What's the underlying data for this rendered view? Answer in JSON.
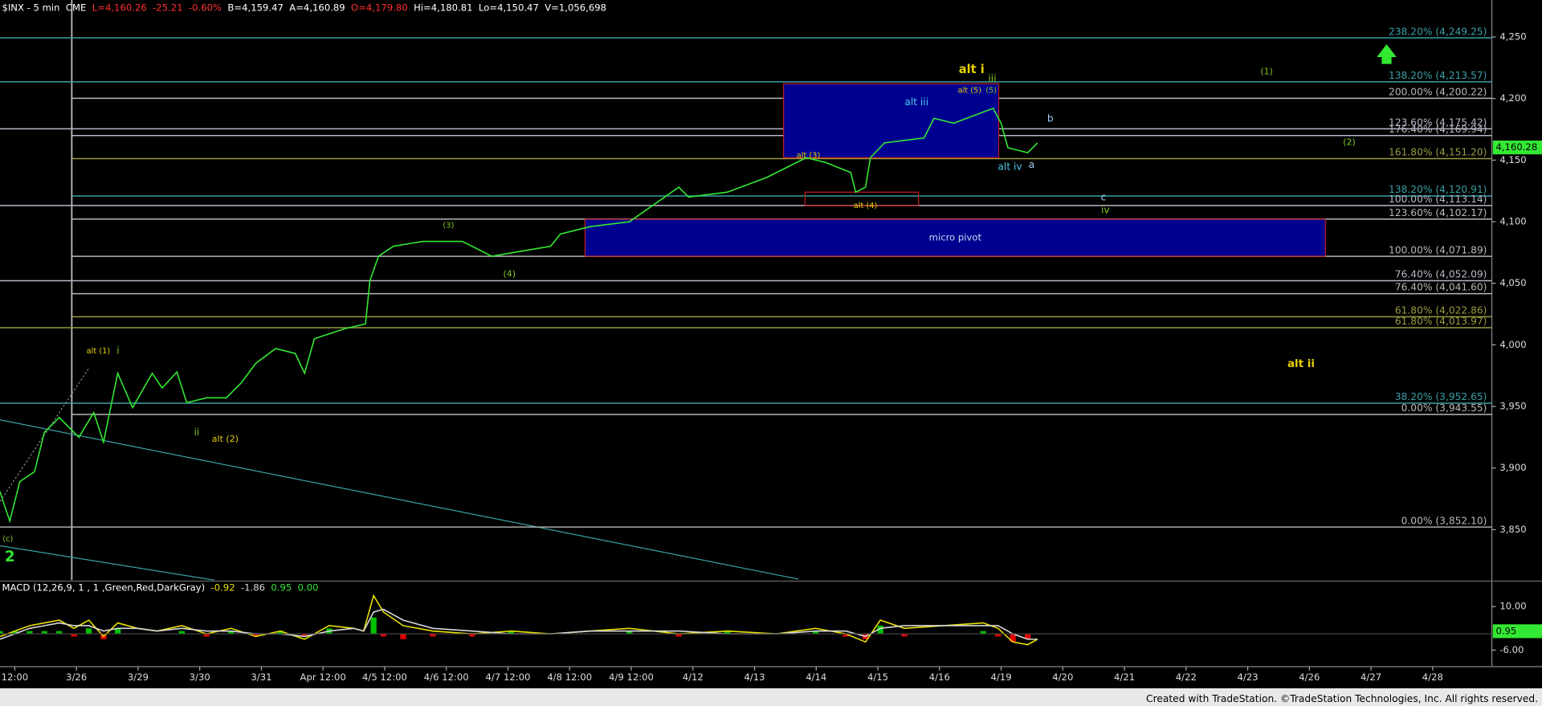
{
  "chart_data": [
    {
      "type": "line",
      "title": "$INX - 5 min",
      "exchange": "CME",
      "stats": [
        "L=4,160.26",
        "-25.21",
        "-0.60%",
        "B=4,159.47",
        "A=4,160.89",
        "O=4,179.80",
        "Hi=4,180.81",
        "Lo=4,150.47",
        "V=1,056,698"
      ],
      "xlim": [
        -0.24,
        23.96
      ],
      "xticks": [
        {
          "value": 0,
          "label": "12:00"
        },
        {
          "value": 1,
          "label": "3/26"
        },
        {
          "value": 2,
          "label": "3/29"
        },
        {
          "value": 3,
          "label": "3/30"
        },
        {
          "value": 4,
          "label": "3/31"
        },
        {
          "value": 5,
          "label": "Apr 12:00"
        },
        {
          "value": 6,
          "label": "4/5 12:00"
        },
        {
          "value": 7,
          "label": "4/6 12:00"
        },
        {
          "value": 8,
          "label": "4/7 12:00"
        },
        {
          "value": 9,
          "label": "4/8 12:00"
        },
        {
          "value": 10,
          "label": "4/9 12:00"
        },
        {
          "value": 11,
          "label": "4/12"
        },
        {
          "value": 12,
          "label": "4/13"
        },
        {
          "value": 13,
          "label": "4/14"
        },
        {
          "value": 14,
          "label": "4/15"
        },
        {
          "value": 15,
          "label": "4/16"
        },
        {
          "value": 16,
          "label": "4/19"
        },
        {
          "value": 17,
          "label": "4/20"
        },
        {
          "value": 18,
          "label": "4/21"
        },
        {
          "value": 19,
          "label": "4/22"
        },
        {
          "value": 20,
          "label": "4/23"
        },
        {
          "value": 21,
          "label": "4/26"
        },
        {
          "value": 22,
          "label": "4/27"
        },
        {
          "value": 23,
          "label": "4/28"
        }
      ],
      "ylim": [
        3809,
        4280
      ],
      "yticks": [
        {
          "value": 3850,
          "label": "3,850"
        },
        {
          "value": 3900,
          "label": "3,900"
        },
        {
          "value": 3950,
          "label": "3,950"
        },
        {
          "value": 4000,
          "label": "4,000"
        },
        {
          "value": 4050,
          "label": "4,050"
        },
        {
          "value": 4100,
          "label": "4,100"
        },
        {
          "value": 4150,
          "label": "4,150"
        },
        {
          "value": 4200,
          "label": "4,200"
        },
        {
          "value": 4250,
          "label": "4,250"
        }
      ],
      "grid": false,
      "x": [
        -0.24,
        -0.19,
        -0.08,
        0.08,
        0.32,
        0.48,
        0.72,
        1.04,
        1.28,
        1.44,
        1.67,
        1.91,
        2.23,
        2.39,
        2.63,
        2.79,
        3.11,
        3.43,
        3.67,
        3.91,
        4.23,
        4.55,
        4.7,
        4.86,
        5.34,
        5.69,
        5.76,
        5.9,
        6.14,
        6.62,
        7.26,
        7.74,
        8.21,
        8.69,
        8.85,
        9.33,
        9.97,
        10.77,
        10.93,
        11.56,
        12.2,
        12.84,
        13.16,
        13.56,
        13.64,
        13.8,
        13.88,
        14.11,
        14.75,
        14.91,
        15.23,
        15.87,
        16.0,
        16.11,
        16.43,
        16.59
      ],
      "series": [
        {
          "color": "#33e833",
          "values": [
            3881,
            3873,
            3857,
            3889,
            3897,
            3929,
            3941,
            3925,
            3945,
            3921,
            3977,
            3949,
            3977,
            3965,
            3978,
            3953,
            3957,
            3957,
            3969,
            3985,
            3997,
            3993,
            3977,
            4005,
            4013,
            4017,
            4052,
            4072,
            4080,
            4084,
            4084,
            4072,
            4076,
            4080,
            4090,
            4096,
            4100,
            4128,
            4120,
            4124,
            4136,
            4152,
            4148,
            4140,
            4124,
            4128,
            4152,
            4164,
            4168,
            4184,
            4180,
            4192,
            4180,
            4160,
            4156,
            4164
          ]
        }
      ],
      "last_value": {
        "value": 4160.28,
        "label": "4,160.28",
        "color": "#33e833"
      },
      "levels": [
        {
          "value": 4249.25,
          "label": "238.20% (4,249.25)",
          "color": "#3a9fa6"
        },
        {
          "value": 4213.57,
          "label": "138.20% (4,213.57)",
          "color": "#3a9fa6"
        },
        {
          "value": 4200.22,
          "label": "200.00% (4,200.22)",
          "color": "#b8b8b8"
        },
        {
          "value": 4175.42,
          "label": "123.60% (4,175.42)",
          "color": "#b8b8c8"
        },
        {
          "value": 4169.94,
          "label": "176.40% (4,169.94)",
          "color": "#b8b8c8"
        },
        {
          "value": 4151.2,
          "label": "161.80% (4,151.20)",
          "color": "#9a9a40"
        },
        {
          "value": 4120.91,
          "label": "138.20% (4,120.91)",
          "color": "#3a9fa6"
        },
        {
          "value": 4113.14,
          "label": "100.00% (4,113.14)",
          "color": "#b8b8c8"
        },
        {
          "value": 4102.17,
          "label": "123.60% (4,102.17)",
          "color": "#b8b8b8"
        },
        {
          "value": 4071.89,
          "label": "100.00% (4,071.89)",
          "color": "#b8b8b8"
        },
        {
          "value": 4052.09,
          "label": "76.40% (4,052.09)",
          "color": "#b8b8c8"
        },
        {
          "value": 4041.6,
          "label": "76.40% (4,041.60)",
          "color": "#b8b8b8"
        },
        {
          "value": 4022.86,
          "label": "61.80% (4,022.86)",
          "color": "#9a9a40"
        },
        {
          "value": 4013.97,
          "label": "61.80% (4,013.97)",
          "color": "#9a9a40"
        },
        {
          "value": 3952.65,
          "label": "38.20% (3,952.65)",
          "color": "#3a9fa6"
        },
        {
          "value": 3943.55,
          "label": "0.00% (3,943.55)",
          "color": "#b8b8b8"
        },
        {
          "value": 3852.1,
          "label": "0.00% (3,852.10)",
          "color": "#b8b8b8"
        }
      ],
      "zones": [
        {
          "low": 4152,
          "high": 4212,
          "x0": 12.47,
          "x1": 15.96,
          "color": "#000090",
          "edge": "#c02020"
        },
        {
          "low": 4113,
          "high": 4124,
          "x0": 12.82,
          "x1": 14.66,
          "edge": "#c02020"
        },
        {
          "low": 4072,
          "high": 4102,
          "x0": 9.25,
          "x1": 21.26,
          "color": "#000090",
          "edge": "#c02020",
          "label": "micro pivot"
        }
      ],
      "annotations": [
        {
          "text": "alt i",
          "color": "#e8d000"
        },
        {
          "text": "iii",
          "color": "#7ec820"
        },
        {
          "text": "alt (5)",
          "color": "#e8d000"
        },
        {
          "text": "(5)",
          "color": "#7ec820"
        },
        {
          "text": "alt iii",
          "color": "#4cc8e8"
        },
        {
          "text": "b",
          "color": "#a0c8f0"
        },
        {
          "text": "alt iv",
          "color": "#4cc8e8"
        },
        {
          "text": "a",
          "color": "#a0c8f0"
        },
        {
          "text": "(2)",
          "color": "#7ec820"
        },
        {
          "text": "(1)",
          "color": "#7ec820"
        },
        {
          "text": "alt (3)",
          "color": "#e8d000"
        },
        {
          "text": "alt (4)",
          "color": "#e8d000"
        },
        {
          "text": "(3)",
          "color": "#7ec820"
        },
        {
          "text": "(4)",
          "color": "#7ec820"
        },
        {
          "text": "c",
          "color": "#a0c8f0"
        },
        {
          "text": "iv",
          "color": "#7ec820"
        },
        {
          "text": "alt (1)",
          "color": "#e8d000"
        },
        {
          "text": "i",
          "color": "#7ec820"
        },
        {
          "text": "ii",
          "color": "#7ec820"
        },
        {
          "text": "alt (2)",
          "color": "#e8d000"
        },
        {
          "text": "alt ii",
          "color": "#e8d000"
        },
        {
          "text": "(c)",
          "color": "#7ec820"
        },
        {
          "text": "2",
          "color": "#33e833"
        }
      ]
    },
    {
      "type": "line",
      "title": "MACD (12,26,9, 1 , 1 ,Green,Red,DarkGray)",
      "readouts": [
        {
          "text": "-0.92",
          "color": "#e8e000"
        },
        {
          "text": "-1.86",
          "color": "#d8d8d8"
        },
        {
          "text": "0.95",
          "color": "#33e833"
        },
        {
          "text": "0.00",
          "color": "#33e833"
        }
      ],
      "ylim": [
        -11,
        19
      ],
      "yticks": [
        {
          "value": 10,
          "label": "10.00"
        },
        {
          "value": -6,
          "label": "-6.00"
        }
      ],
      "x": [
        -0.24,
        0,
        0.24,
        0.48,
        0.72,
        0.96,
        1.2,
        1.44,
        1.67,
        1.99,
        2.31,
        2.71,
        3.11,
        3.51,
        3.91,
        4.31,
        4.7,
        5.1,
        5.5,
        5.66,
        5.82,
        5.98,
        6.3,
        6.78,
        7.42,
        8.05,
        8.69,
        9.33,
        9.97,
        10.77,
        11.56,
        12.36,
        12.99,
        13.48,
        13.8,
        14.04,
        14.43,
        15.07,
        15.71,
        15.95,
        16.19,
        16.43,
        16.59
      ],
      "series": [
        {
          "type": "line",
          "color": "#e8e000",
          "values": [
            -1,
            1,
            3,
            4,
            5,
            2,
            5,
            -1,
            4,
            2,
            1,
            3,
            0,
            2,
            -1,
            1,
            -2,
            3,
            2,
            1,
            14,
            8,
            3,
            1,
            0,
            1,
            0,
            1,
            2,
            0,
            1,
            0,
            2,
            0,
            -3,
            5,
            2,
            3,
            4,
            2,
            -3,
            -4,
            -2
          ]
        },
        {
          "type": "line",
          "color": "#d8d8d8",
          "values": [
            -2,
            0,
            2,
            3,
            4,
            3,
            3,
            1,
            2,
            2,
            1,
            2,
            1,
            1,
            0,
            0,
            -1,
            1,
            2,
            1,
            8,
            9,
            5,
            2,
            1,
            0,
            0,
            1,
            1,
            1,
            0,
            0,
            1,
            1,
            -1,
            2,
            3,
            3,
            3,
            3,
            0,
            -2,
            -2
          ]
        },
        {
          "type": "histogram",
          "color": "#00c000",
          "negative_color": "#e00000",
          "values": [
            1,
            1,
            1,
            1,
            1,
            -1,
            2,
            -2,
            2,
            0,
            0,
            1,
            -1,
            1,
            -1,
            1,
            -1,
            2,
            0,
            0,
            6,
            -1,
            -2,
            -1,
            -1,
            1,
            0,
            0,
            1,
            -1,
            1,
            0,
            1,
            -1,
            -2,
            3,
            -1,
            0,
            1,
            -1,
            -3,
            -2,
            0
          ]
        }
      ],
      "last_value": {
        "value": 0.95,
        "label": "0.95",
        "color": "#33e833"
      }
    }
  ],
  "footer": "Created with TradeStation. ©TradeStation Technologies, Inc. All rights reserved."
}
